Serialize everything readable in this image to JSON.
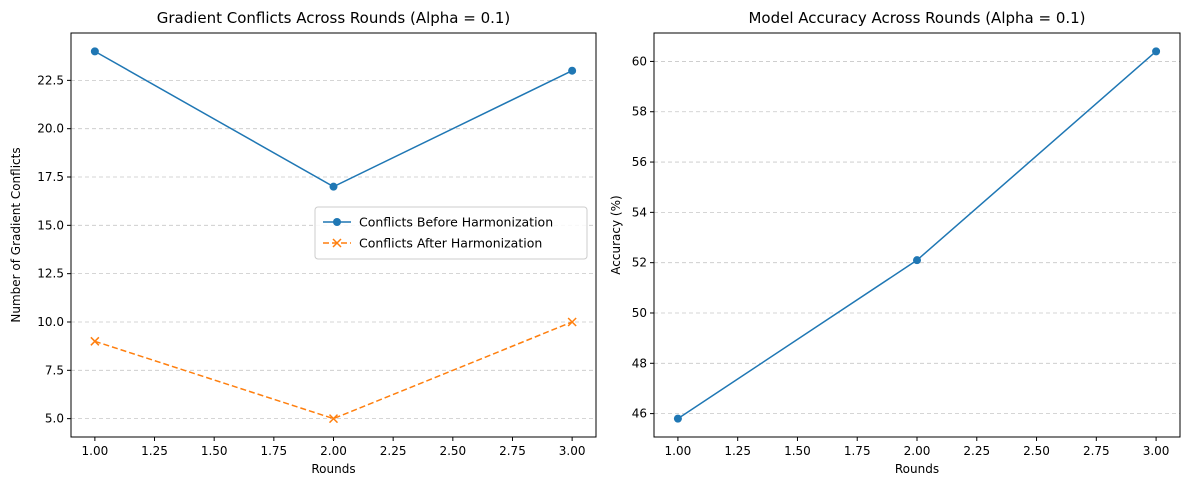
{
  "chart_data": [
    {
      "type": "line",
      "title": "Gradient Conflicts Across Rounds (Alpha = 0.1)",
      "xlabel": "Rounds",
      "ylabel": "Number of Gradient Conflicts",
      "xlim": [
        0.9,
        3.1
      ],
      "ylim": [
        4.05,
        24.95
      ],
      "xticks": [
        1.0,
        1.25,
        1.5,
        1.75,
        2.0,
        2.25,
        2.5,
        2.75,
        3.0
      ],
      "xtick_labels": [
        "1.00",
        "1.25",
        "1.50",
        "1.75",
        "2.00",
        "2.25",
        "2.50",
        "2.75",
        "3.00"
      ],
      "yticks": [
        5.0,
        7.5,
        10.0,
        12.5,
        15.0,
        17.5,
        20.0,
        22.5
      ],
      "ytick_labels": [
        "5.0",
        "7.5",
        "10.0",
        "12.5",
        "15.0",
        "17.5",
        "20.0",
        "22.5"
      ],
      "grid": "y-dashed",
      "legend_position": "center-right",
      "x": [
        1,
        2,
        3
      ],
      "series": [
        {
          "name": "Conflicts Before Harmonization",
          "values": [
            24,
            17,
            23
          ],
          "color": "#1f77b4",
          "marker": "circle",
          "linestyle": "solid"
        },
        {
          "name": "Conflicts After Harmonization",
          "values": [
            9,
            5,
            10
          ],
          "color": "#ff7f0e",
          "marker": "x",
          "linestyle": "dashed"
        }
      ]
    },
    {
      "type": "line",
      "title": "Model Accuracy Across Rounds (Alpha = 0.1)",
      "xlabel": "Rounds",
      "ylabel": "Accuracy (%)",
      "xlim": [
        0.9,
        3.1
      ],
      "ylim": [
        45.07,
        61.13
      ],
      "xticks": [
        1.0,
        1.25,
        1.5,
        1.75,
        2.0,
        2.25,
        2.5,
        2.75,
        3.0
      ],
      "xtick_labels": [
        "1.00",
        "1.25",
        "1.50",
        "1.75",
        "2.00",
        "2.25",
        "2.50",
        "2.75",
        "3.00"
      ],
      "yticks": [
        46,
        48,
        50,
        52,
        54,
        56,
        58,
        60
      ],
      "ytick_labels": [
        "46",
        "48",
        "50",
        "52",
        "54",
        "56",
        "58",
        "60"
      ],
      "grid": "y-dashed",
      "x": [
        1,
        2,
        3
      ],
      "series": [
        {
          "values": [
            45.8,
            52.1,
            60.4
          ],
          "color": "#1f77b4",
          "marker": "circle",
          "linestyle": "solid"
        }
      ]
    }
  ]
}
